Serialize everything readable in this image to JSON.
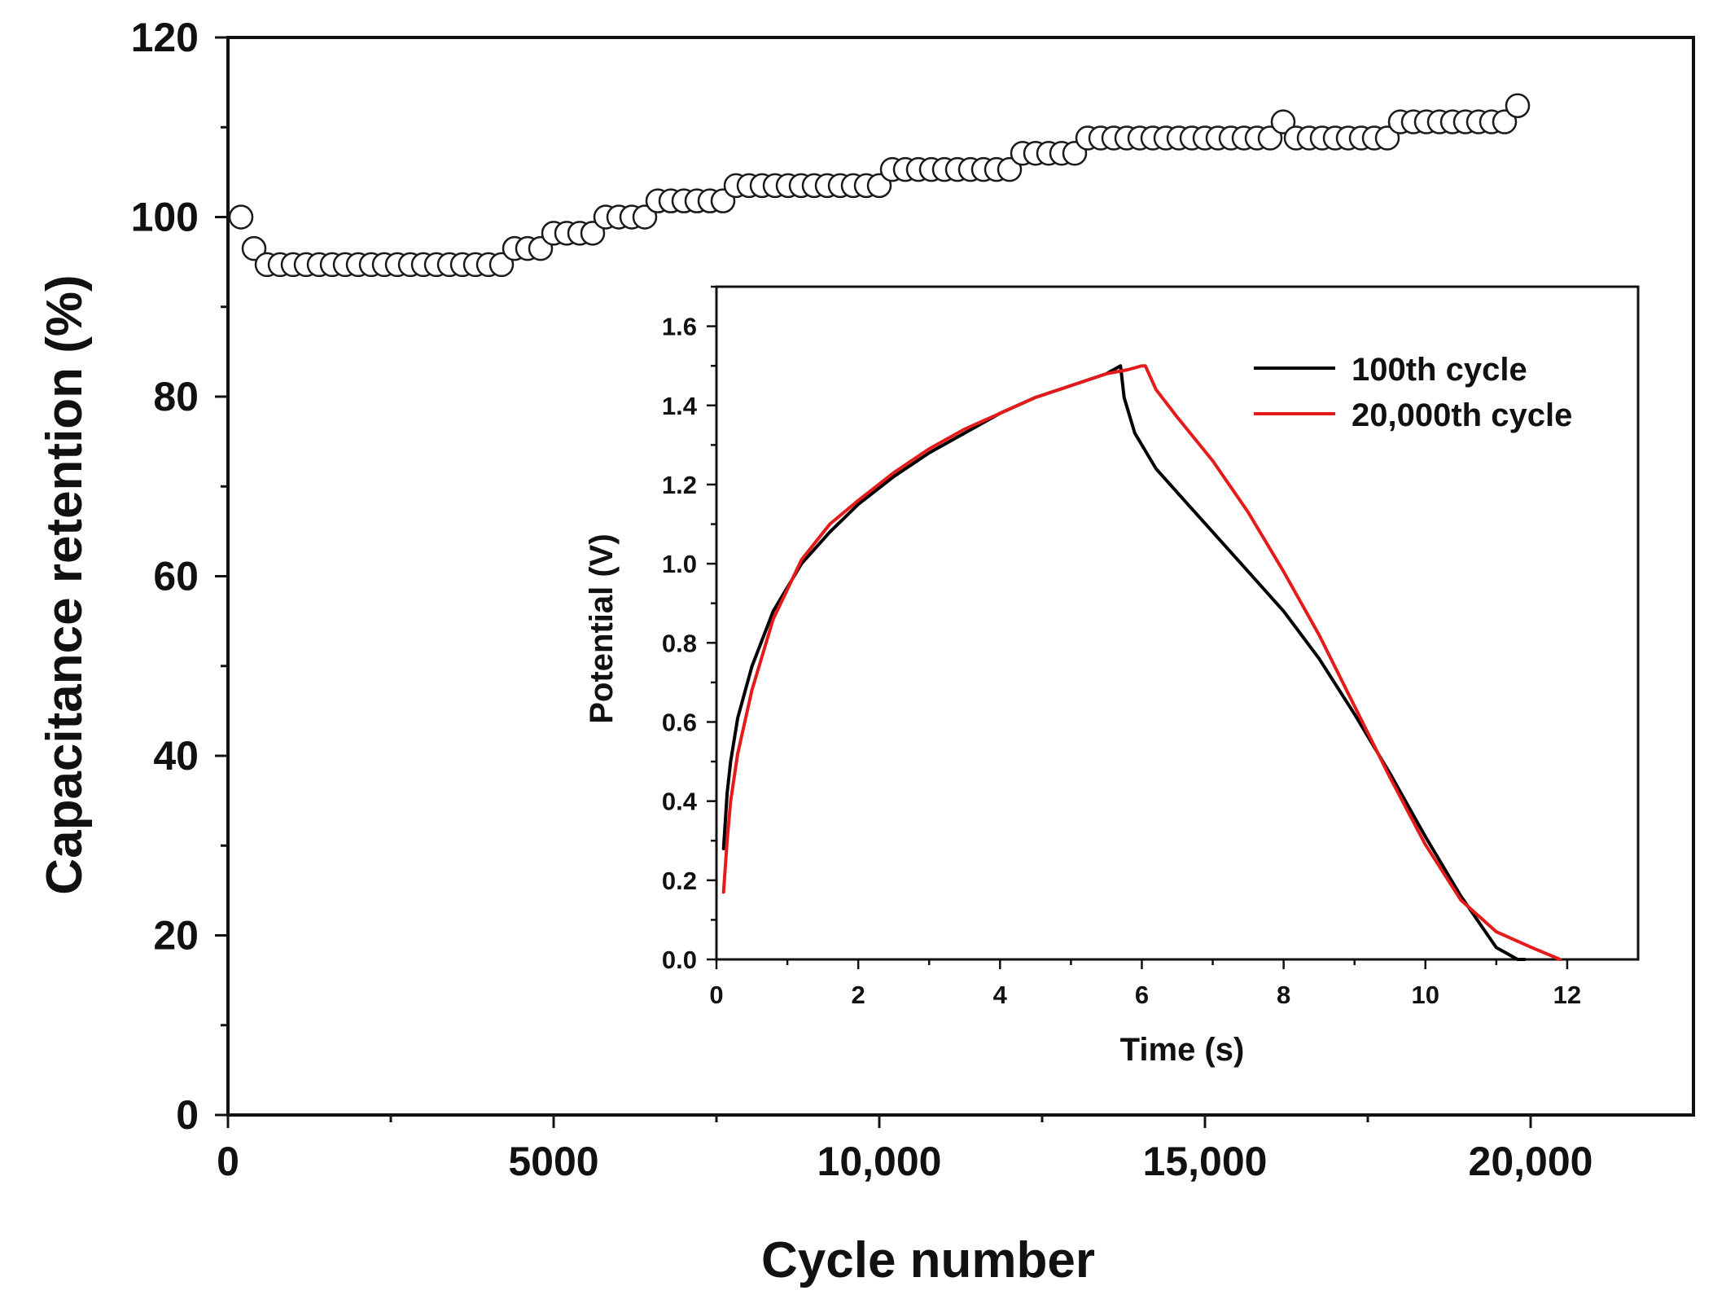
{
  "chart_data": [
    {
      "type": "scatter",
      "xlabel": "Cycle number",
      "ylabel": "Capacitance retention (%)",
      "xlim": [
        0,
        22500
      ],
      "ylim": [
        0,
        120
      ],
      "xticks": [
        0,
        5000,
        10000,
        15000,
        20000
      ],
      "xtick_labels": [
        "0",
        "5000",
        "10,000",
        "15,000",
        "20,000"
      ],
      "yticks": [
        0,
        20,
        40,
        60,
        80,
        100,
        120
      ],
      "ytick_labels": [
        "0",
        "20",
        "40",
        "60",
        "80",
        "100",
        "120"
      ],
      "marker": "open-circle",
      "series": [
        {
          "x": [
            200,
            400,
            600,
            800,
            1000,
            1200,
            1400,
            1600,
            1800,
            2000,
            2200,
            2400,
            2600,
            2800,
            3000,
            3200,
            3400,
            3600,
            3800,
            4000,
            4200,
            4400,
            4600,
            4800,
            5000,
            5200,
            5400,
            5600,
            5800,
            6000,
            6200,
            6400,
            6600,
            6800,
            7000,
            7200,
            7400,
            7600,
            7800,
            8000,
            8200,
            8400,
            8600,
            8800,
            9000,
            9200,
            9400,
            9600,
            9800,
            10000,
            10200,
            10400,
            10600,
            10800,
            11000,
            11200,
            11400,
            11600,
            11800,
            12000,
            12200,
            12400,
            12600,
            12800,
            13000,
            13200,
            13400,
            13600,
            13800,
            14000,
            14200,
            14400,
            14600,
            14800,
            15000,
            15200,
            15400,
            15600,
            15800,
            16000,
            16200,
            16400,
            16600,
            16800,
            17000,
            17200,
            17400,
            17600,
            17800,
            18000,
            18200,
            18400,
            18600,
            18800,
            19000,
            19200,
            19400,
            19600,
            19800
          ],
          "y": [
            100,
            96.5,
            94.7,
            94.7,
            94.7,
            94.7,
            94.7,
            94.7,
            94.7,
            94.7,
            94.7,
            94.7,
            94.7,
            94.7,
            94.7,
            94.7,
            94.7,
            94.7,
            94.7,
            94.7,
            94.7,
            96.5,
            96.5,
            96.5,
            98.2,
            98.2,
            98.2,
            98.2,
            100,
            100,
            100,
            100,
            101.8,
            101.8,
            101.8,
            101.8,
            101.8,
            101.8,
            103.5,
            103.5,
            103.5,
            103.5,
            103.5,
            103.5,
            103.5,
            103.5,
            103.5,
            103.5,
            103.5,
            103.5,
            105.3,
            105.3,
            105.3,
            105.3,
            105.3,
            105.3,
            105.3,
            105.3,
            105.3,
            105.3,
            107.1,
            107.1,
            107.1,
            107.1,
            107.1,
            108.8,
            108.8,
            108.8,
            108.8,
            108.8,
            108.8,
            108.8,
            108.8,
            108.8,
            108.8,
            108.8,
            108.8,
            108.8,
            108.8,
            108.8,
            110.6,
            108.8,
            108.8,
            108.8,
            108.8,
            108.8,
            108.8,
            108.8,
            108.8,
            110.6,
            110.6,
            110.6,
            110.6,
            110.6,
            110.6,
            110.6,
            110.6,
            110.6,
            112.4
          ]
        }
      ]
    },
    {
      "type": "line",
      "xlabel": "Time (s)",
      "ylabel": "Potential (V)",
      "xlim": [
        0,
        13
      ],
      "ylim": [
        0,
        1.7
      ],
      "xticks": [
        0,
        2,
        4,
        6,
        8,
        10,
        12
      ],
      "xtick_labels": [
        "0",
        "2",
        "4",
        "6",
        "8",
        "10",
        "12"
      ],
      "yticks": [
        0,
        0.2,
        0.4,
        0.6,
        0.8,
        1.0,
        1.2,
        1.4,
        1.6
      ],
      "ytick_labels": [
        "0.0",
        "0.2",
        "0.4",
        "0.6",
        "0.8",
        "1.0",
        "1.2",
        "1.4",
        "1.6"
      ],
      "legend": "top-right",
      "series": [
        {
          "name": "100th cycle",
          "color": "#000000",
          "x": [
            0.1,
            0.15,
            0.2,
            0.3,
            0.5,
            0.8,
            1.2,
            1.6,
            2.0,
            2.5,
            3.0,
            3.5,
            4.0,
            4.5,
            5.0,
            5.5,
            5.7,
            5.75,
            5.9,
            6.2,
            6.6,
            7.0,
            7.5,
            8.0,
            8.5,
            9.0,
            9.5,
            10.0,
            10.5,
            11.0,
            11.3,
            11.4
          ],
          "y": [
            0.28,
            0.42,
            0.5,
            0.61,
            0.74,
            0.88,
            1.0,
            1.08,
            1.15,
            1.22,
            1.28,
            1.33,
            1.38,
            1.42,
            1.45,
            1.48,
            1.5,
            1.42,
            1.33,
            1.24,
            1.16,
            1.08,
            0.98,
            0.88,
            0.76,
            0.62,
            0.47,
            0.31,
            0.16,
            0.03,
            0.0,
            0.0
          ]
        },
        {
          "name": "20,000th cycle",
          "color": "#e51a1a",
          "x": [
            0.1,
            0.15,
            0.2,
            0.3,
            0.5,
            0.8,
            1.2,
            1.6,
            2.0,
            2.5,
            3.0,
            3.5,
            4.0,
            4.5,
            5.0,
            5.5,
            5.8,
            6.0,
            6.05,
            6.2,
            6.5,
            7.0,
            7.5,
            8.0,
            8.5,
            9.0,
            9.5,
            10.0,
            10.5,
            11.0,
            11.5,
            11.9
          ],
          "y": [
            0.17,
            0.3,
            0.4,
            0.52,
            0.68,
            0.86,
            1.01,
            1.1,
            1.16,
            1.23,
            1.29,
            1.34,
            1.38,
            1.42,
            1.45,
            1.48,
            1.49,
            1.5,
            1.5,
            1.44,
            1.37,
            1.26,
            1.13,
            0.98,
            0.82,
            0.64,
            0.46,
            0.29,
            0.15,
            0.07,
            0.03,
            0.0
          ]
        }
      ]
    }
  ]
}
